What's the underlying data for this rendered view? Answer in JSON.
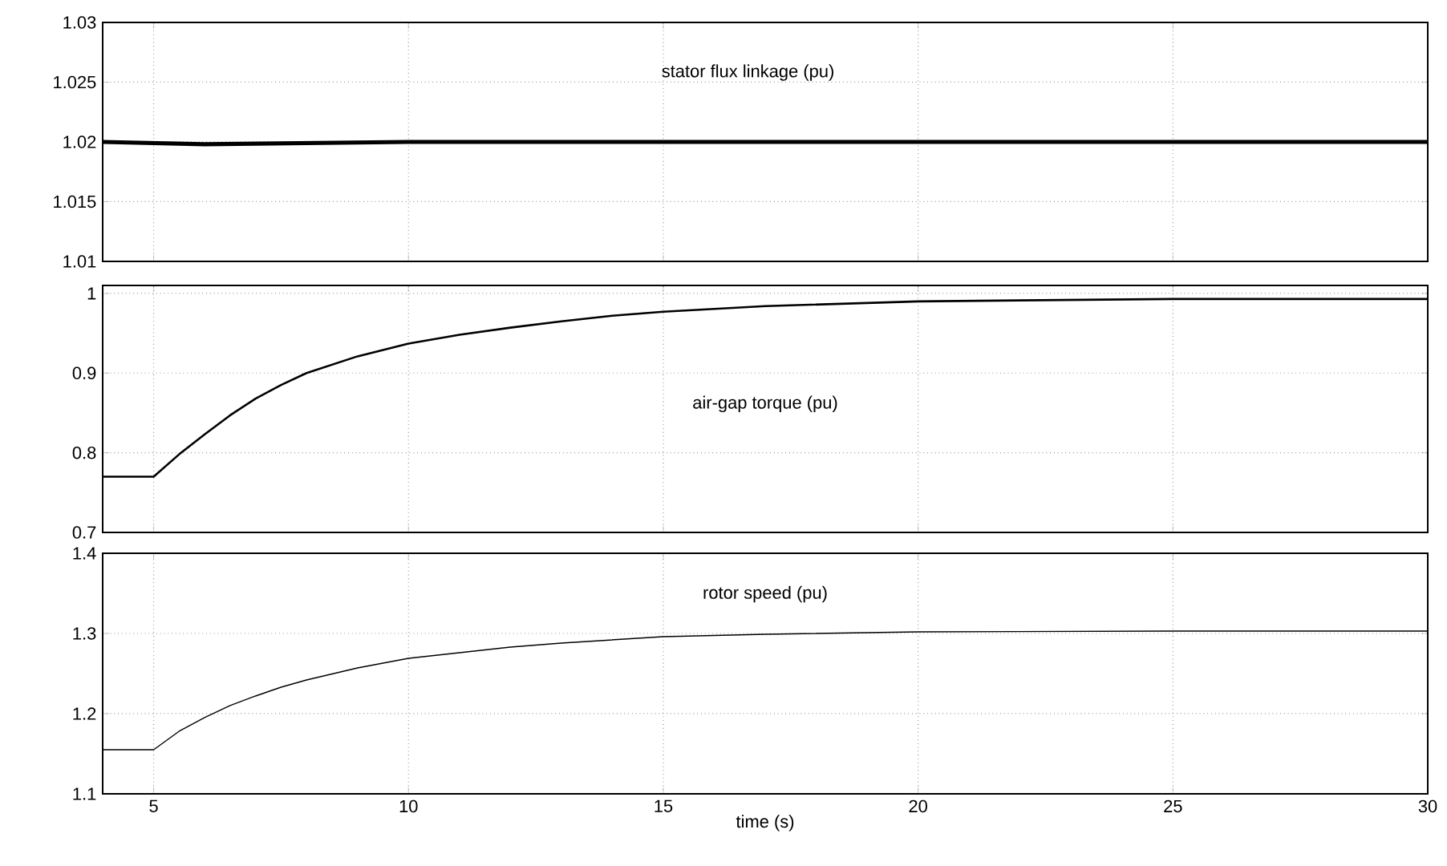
{
  "chart_data": [
    {
      "type": "line",
      "x": [
        4,
        5,
        6,
        8,
        10,
        15,
        20,
        25,
        30
      ],
      "series": [
        {
          "color": "#000000",
          "values": [
            1.02,
            1.0199,
            1.0198,
            1.0199,
            1.02,
            1.02,
            1.02,
            1.02,
            1.02
          ]
        }
      ],
      "xlim": [
        4,
        30
      ],
      "xticks": [
        5,
        10,
        15,
        20,
        25,
        30
      ],
      "ylim": [
        1.01,
        1.03
      ],
      "yticks": [
        1.01,
        1.015,
        1.02,
        1.025,
        1.03
      ],
      "grid": true,
      "tick_labels": "y",
      "annotations": [
        "stator flux linkage (pu)"
      ]
    },
    {
      "type": "line",
      "x": [
        4,
        5,
        5.5,
        6,
        6.5,
        7,
        7.5,
        8,
        9,
        10,
        11,
        12,
        13,
        14,
        15,
        17,
        20,
        25,
        30
      ],
      "series": [
        {
          "color": "#000000",
          "values": [
            0.77,
            0.77,
            0.798,
            0.823,
            0.847,
            0.868,
            0.885,
            0.9,
            0.921,
            0.937,
            0.948,
            0.957,
            0.965,
            0.972,
            0.977,
            0.984,
            0.99,
            0.993,
            0.993
          ]
        }
      ],
      "xlim": [
        4,
        30
      ],
      "xticks": [
        5,
        10,
        15,
        20,
        25,
        30
      ],
      "ylim": [
        0.7,
        1.01
      ],
      "yticks": [
        0.7,
        0.8,
        0.9,
        1
      ],
      "grid": true,
      "tick_labels": "y",
      "annotations": [
        "air-gap torque (pu)"
      ]
    },
    {
      "type": "line",
      "x": [
        4,
        5,
        5.5,
        6,
        6.5,
        7,
        7.5,
        8,
        9,
        10,
        11,
        12,
        13,
        14,
        15,
        17,
        20,
        25,
        30
      ],
      "series": [
        {
          "color": "#000000",
          "values": [
            1.155,
            1.155,
            1.178,
            1.195,
            1.21,
            1.222,
            1.233,
            1.242,
            1.257,
            1.269,
            1.276,
            1.283,
            1.288,
            1.292,
            1.296,
            1.299,
            1.302,
            1.303,
            1.303
          ]
        }
      ],
      "xlim": [
        4,
        30
      ],
      "xticks": [
        5,
        10,
        15,
        20,
        25,
        30
      ],
      "ylim": [
        1.1,
        1.4
      ],
      "yticks": [
        1.1,
        1.2,
        1.3,
        1.4
      ],
      "grid": true,
      "xlabel": "time (s)",
      "annotations": [
        "rotor speed (pu)"
      ]
    }
  ]
}
